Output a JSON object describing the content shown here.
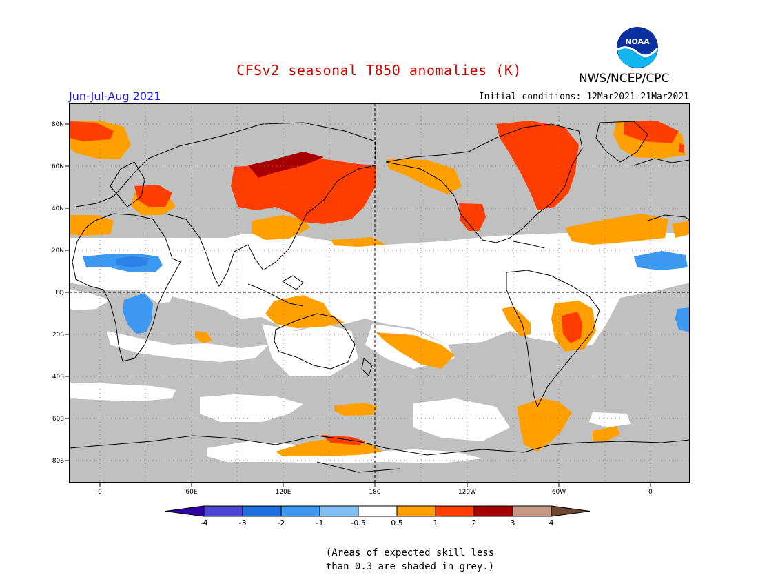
{
  "header": {
    "title": "CFSv2 seasonal T850 anomalies (K)",
    "org": "NWS/NCEP/CPC",
    "season": "Jun-Jul-Aug 2021",
    "initial_conditions": "Initial conditions: 12Mar2021-21Mar2021",
    "logo_text": "NOAA"
  },
  "map": {
    "lat_labels": [
      "80N",
      "60N",
      "40N",
      "20N",
      "EQ",
      "20S",
      "40S",
      "60S",
      "80S"
    ],
    "lon_labels": [
      "0",
      "60E",
      "120E",
      "180",
      "120W",
      "60W",
      "0"
    ],
    "colors": {
      "skill_mask": "#c0c0c0",
      "ocean": "#ffffff",
      "coast": "#000000"
    }
  },
  "colorbar": {
    "labels": [
      "-4",
      "-3",
      "-2",
      "-1",
      "-0.5",
      "0.5",
      "1",
      "2",
      "3",
      "4"
    ],
    "colors": [
      "#2c00a4",
      "#4c46d8",
      "#1f6fe0",
      "#3c98f0",
      "#80c0f5",
      "#ffffff",
      "#ffa000",
      "#ff3d00",
      "#a60000",
      "#c79884",
      "#6e4432"
    ]
  },
  "note": {
    "line1": "(Areas of expected skill less",
    "line2": "than 0.3 are shaded in grey.)"
  }
}
